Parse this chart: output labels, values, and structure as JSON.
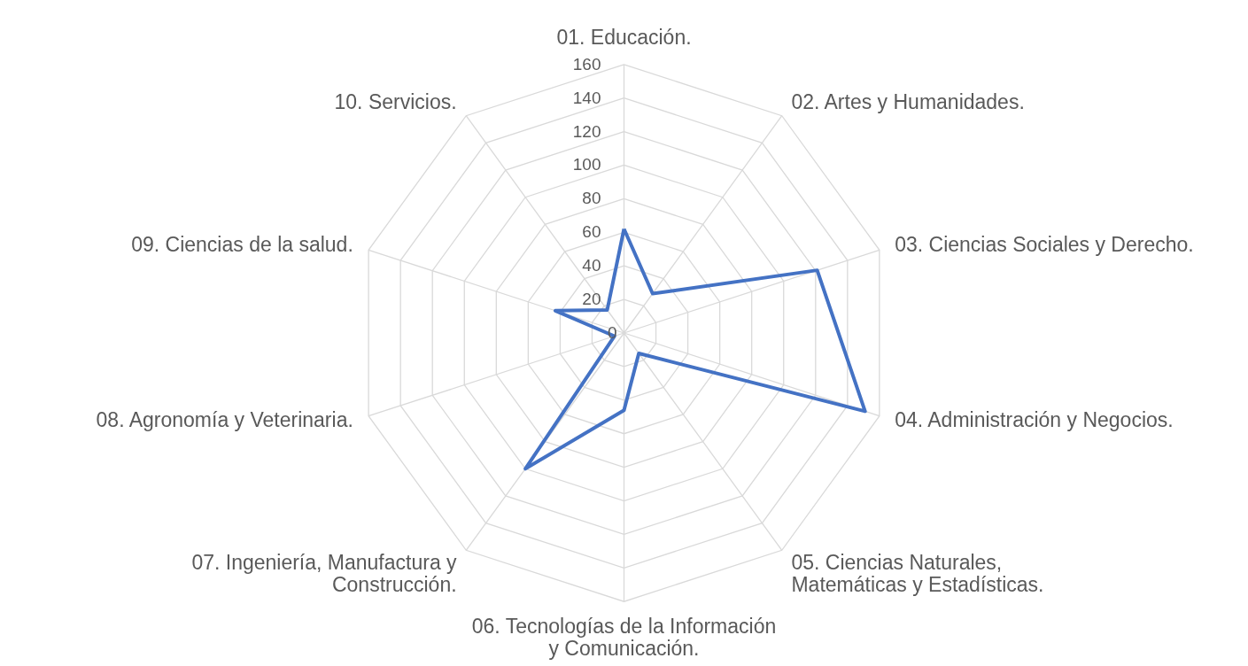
{
  "chart_data": {
    "type": "radar",
    "categories": [
      "01. Educación.",
      "02. Artes y Humanidades.",
      "03. Ciencias Sociales y Derecho.",
      "04. Administración y Negocios.",
      "05. Ciencias Naturales,\nMatemáticas y Estadísticas.",
      "06. Tecnologías de la Información\ny Comunicación.",
      "07. Ingeniería, Manufactura y\nConstrucción.",
      "08. Agronomía y Veterinaria.",
      "09. Ciencias de la salud.",
      "10. Servicios."
    ],
    "series": [
      {
        "color": "#4472c4",
        "values": [
          62,
          29,
          121,
          151,
          15,
          46,
          100,
          6,
          43,
          17
        ]
      }
    ],
    "ylim": [
      0,
      160
    ],
    "yticks": [
      0,
      20,
      40,
      60,
      80,
      100,
      120,
      140,
      160
    ],
    "grid": true
  }
}
